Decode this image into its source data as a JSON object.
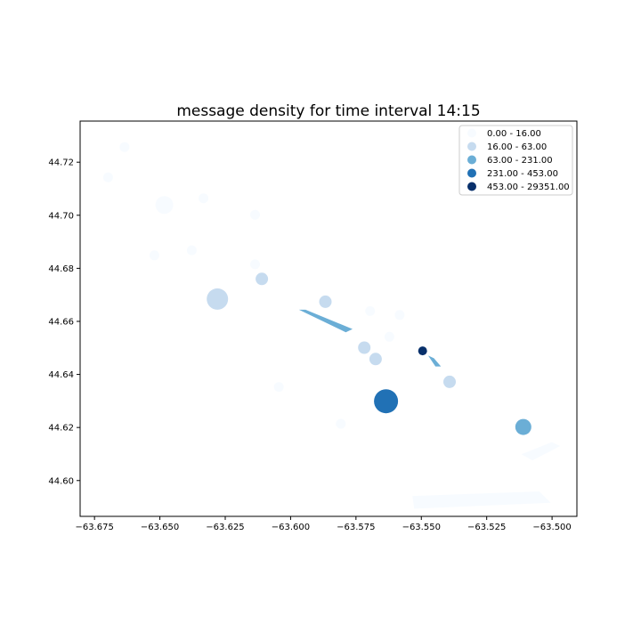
{
  "chart_data": {
    "type": "scatter",
    "title": "message density for time interval 14:15",
    "xlabel": "",
    "ylabel": "",
    "xlim": [
      -63.6805,
      -63.4905
    ],
    "ylim": [
      44.5865,
      44.7355
    ],
    "grid": false,
    "x_ticks": [
      -63.675,
      -63.65,
      -63.625,
      -63.6,
      -63.575,
      -63.55,
      -63.525,
      -63.5
    ],
    "x_tick_labels": [
      "−63.675",
      "−63.650",
      "−63.625",
      "−63.600",
      "−63.575",
      "−63.550",
      "−63.525",
      "−63.500"
    ],
    "y_ticks": [
      44.6,
      44.62,
      44.64,
      44.66,
      44.68,
      44.7,
      44.72
    ],
    "y_tick_labels": [
      "44.60",
      "44.62",
      "44.64",
      "44.66",
      "44.68",
      "44.70",
      "44.72"
    ],
    "legend_position": "top-right",
    "legend": [
      {
        "label": "0.00 - 16.00",
        "color": "#f7fbff"
      },
      {
        "label": "16.00 - 63.00",
        "color": "#c6dbef"
      },
      {
        "label": "63.00 - 231.00",
        "color": "#6baed6"
      },
      {
        "label": "231.00 - 453.00",
        "color": "#2171b5"
      },
      {
        "label": "453.00 - 29351.00",
        "color": "#08306b"
      }
    ],
    "points": [
      {
        "x": -63.6635,
        "y": 44.7257,
        "class": 0
      },
      {
        "x": -63.6698,
        "y": 44.7143,
        "class": 0
      },
      {
        "x": -63.6483,
        "y": 44.7039,
        "class": 0
      },
      {
        "x": -63.6333,
        "y": 44.7064,
        "class": 0
      },
      {
        "x": -63.6136,
        "y": 44.7002,
        "class": 0
      },
      {
        "x": -63.6521,
        "y": 44.6849,
        "class": 0
      },
      {
        "x": -63.6378,
        "y": 44.6868,
        "class": 0
      },
      {
        "x": -63.6136,
        "y": 44.6815,
        "class": 0
      },
      {
        "x": -63.611,
        "y": 44.676,
        "class": 1
      },
      {
        "x": -63.628,
        "y": 44.6684,
        "class": 1
      },
      {
        "x": -63.5867,
        "y": 44.6674,
        "class": 1
      },
      {
        "x": -63.5696,
        "y": 44.6639,
        "class": 0
      },
      {
        "x": -63.5583,
        "y": 44.6624,
        "class": 0
      },
      {
        "x": -63.5622,
        "y": 44.6542,
        "class": 0
      },
      {
        "x": -63.5718,
        "y": 44.6501,
        "class": 1
      },
      {
        "x": -63.5675,
        "y": 44.6458,
        "class": 1
      },
      {
        "x": -63.5495,
        "y": 44.6489,
        "class": 4
      },
      {
        "x": -63.5392,
        "y": 44.6372,
        "class": 1
      },
      {
        "x": -63.6045,
        "y": 44.6353,
        "class": 0
      },
      {
        "x": -63.5635,
        "y": 44.6299,
        "class": 3
      },
      {
        "x": -63.5808,
        "y": 44.6214,
        "class": 0
      },
      {
        "x": -63.511,
        "y": 44.6202,
        "class": 2
      }
    ],
    "polygons": [
      {
        "class": 2,
        "points": [
          [
            -63.5968,
            44.6644
          ],
          [
            -63.5943,
            44.6644
          ],
          [
            -63.5763,
            44.6571
          ],
          [
            -63.5789,
            44.6559
          ]
        ]
      },
      {
        "class": 2,
        "points": [
          [
            -63.5474,
            44.6471
          ],
          [
            -63.5452,
            44.6461
          ],
          [
            -63.5425,
            44.643
          ],
          [
            -63.5446,
            44.643
          ]
        ]
      },
      {
        "class": 0,
        "points": [
          [
            -63.5117,
            44.6099
          ],
          [
            -63.5001,
            44.6145
          ],
          [
            -63.4969,
            44.613
          ],
          [
            -63.5075,
            44.6076
          ]
        ]
      },
      {
        "class": 0,
        "points": [
          [
            -63.5534,
            44.5942
          ],
          [
            -63.5049,
            44.5959
          ],
          [
            -63.5005,
            44.5916
          ],
          [
            -63.5527,
            44.5894
          ]
        ]
      }
    ]
  }
}
